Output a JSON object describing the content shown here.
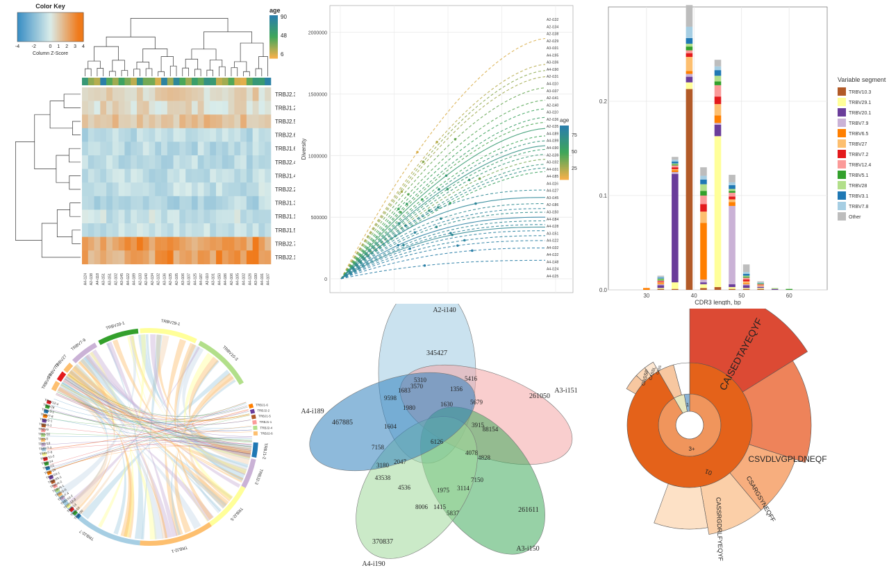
{
  "chart_data": [
    {
      "type": "heatmap",
      "color_key": {
        "title": "Color Key",
        "xlabel": "Column Z-Score",
        "ticks": [
          "-4",
          "-2",
          "0",
          "1",
          "2",
          "3",
          "4"
        ]
      },
      "age_legend": {
        "title": "age",
        "ticks": [
          "90",
          "48",
          "6"
        ]
      },
      "rows": [
        "TRBJ2.3",
        "TRBJ1.2",
        "TRBJ2.5",
        "TRBJ2.6",
        "TRBJ1.6",
        "TRBJ2.4",
        "TRBJ1.4",
        "TRBJ2.2",
        "TRBJ1.3",
        "TRBJ1.1",
        "TRBJ1.5",
        "TRBJ2.7",
        "TRBJ2.1"
      ],
      "columns": [
        "A4-i124",
        "A2-i138",
        "A4-i118",
        "A3-i151",
        "A3-i151",
        "A2-i102",
        "A3-i145",
        "A4-i122",
        "A4-i189",
        "A2-i133",
        "A2-i140",
        "A2-i134",
        "A2-i132",
        "A3-i136",
        "A2-i135",
        "A2-i105",
        "A3-i106",
        "A3-i107",
        "A4-i125",
        "A4-i187",
        "A2-i110",
        "A3-i101",
        "A4-i150",
        "A4-i186",
        "A2-i106",
        "A4-i105",
        "A4-i102",
        "A4-i126",
        "A3-i190",
        "A4-i191",
        "A4-i107"
      ]
    },
    {
      "type": "line",
      "ylabel": "Diversity",
      "yticks": [
        "0",
        "500000",
        "1000000",
        "1500000",
        "2000000"
      ],
      "ylim": [
        0,
        2150000
      ],
      "age_legend": {
        "title": "age",
        "ticks": [
          "75",
          "50",
          "25"
        ]
      },
      "samples": [
        "A2-i132",
        "A2-i134",
        "A2-i138",
        "A2-i129",
        "A3-i101",
        "A4-i195",
        "A3-i106",
        "A4-i190",
        "A2-i131",
        "A4-i110",
        "A3-i107",
        "A2-i141",
        "A2-i140",
        "A3-i110",
        "A2-i136",
        "A2-i135",
        "A4-i189",
        "A4-i199",
        "A4-i190",
        "A2-i139",
        "A3-i102",
        "A4-i101",
        "A4-i185",
        "A4-i116",
        "A4-i127",
        "A3-i145",
        "A2-i186",
        "A3-i150",
        "A4-i184",
        "A4-i128",
        "A3-i151",
        "A4-i122",
        "A4-i102",
        "A4-i132",
        "A4-i148",
        "A4-i124",
        "A4-i125"
      ],
      "curves": [
        {
          "end": 1950000,
          "age": 12,
          "style": "dashed"
        },
        {
          "end": 1740000,
          "age": 20,
          "style": "dashed"
        },
        {
          "end": 1690000,
          "age": 30,
          "style": "dashed"
        },
        {
          "end": 1640000,
          "age": 25,
          "style": "dashed"
        },
        {
          "end": 1550000,
          "age": 38,
          "style": "dashed"
        },
        {
          "end": 1450000,
          "age": 42,
          "style": "dashed"
        },
        {
          "end": 1380000,
          "age": 50,
          "style": "dashed"
        },
        {
          "end": 1310000,
          "age": 55,
          "style": "dashed"
        },
        {
          "end": 1270000,
          "age": 44,
          "style": "dashed"
        },
        {
          "end": 1220000,
          "age": 60,
          "style": "solid"
        },
        {
          "end": 1160000,
          "age": 48,
          "style": "dashed"
        },
        {
          "end": 1120000,
          "age": 65,
          "style": "dashed"
        },
        {
          "end": 1080000,
          "age": 70,
          "style": "solid"
        },
        {
          "end": 1050000,
          "age": 58,
          "style": "dashed"
        },
        {
          "end": 1010000,
          "age": 62,
          "style": "dashed"
        },
        {
          "end": 970000,
          "age": 35,
          "style": "dashed"
        },
        {
          "end": 930000,
          "age": 66,
          "style": "dashed"
        },
        {
          "end": 900000,
          "age": 72,
          "style": "dashed"
        },
        {
          "end": 870000,
          "age": 52,
          "style": "dashed"
        },
        {
          "end": 720000,
          "age": 78,
          "style": "dashed"
        },
        {
          "end": 660000,
          "age": 80,
          "style": "solid"
        },
        {
          "end": 610000,
          "age": 76,
          "style": "dashed"
        },
        {
          "end": 570000,
          "age": 82,
          "style": "dashed"
        },
        {
          "end": 540000,
          "age": 74,
          "style": "dashed"
        },
        {
          "end": 500000,
          "age": 85,
          "style": "solid"
        },
        {
          "end": 470000,
          "age": 79,
          "style": "dashed"
        },
        {
          "end": 440000,
          "age": 81,
          "style": "dashed"
        },
        {
          "end": 420000,
          "age": 77,
          "style": "solid"
        },
        {
          "end": 390000,
          "age": 84,
          "style": "dashed"
        },
        {
          "end": 350000,
          "age": 83,
          "style": "dashed"
        },
        {
          "end": 310000,
          "age": 86,
          "style": "dashed"
        },
        {
          "end": 250000,
          "age": 88,
          "style": "dashed"
        },
        {
          "end": 150000,
          "age": 87,
          "style": "dashed"
        }
      ]
    },
    {
      "type": "bar",
      "xlabel": "CDR3 length, bp",
      "xticks": [
        "30",
        "40",
        "50",
        "60"
      ],
      "yticks": [
        "0.0",
        "0.1",
        "0.2"
      ],
      "ylim": [
        0,
        0.3
      ],
      "xlim": [
        22,
        68
      ],
      "legend_title": "Variable segment",
      "segments": [
        {
          "name": "TRBV10.3",
          "color": "#b25a28"
        },
        {
          "name": "TRBV29.1",
          "color": "#ffff99"
        },
        {
          "name": "TRBV20.1",
          "color": "#6a3d9a"
        },
        {
          "name": "TRBV7.9",
          "color": "#cab2d6"
        },
        {
          "name": "TRBV6.5",
          "color": "#ff7f00"
        },
        {
          "name": "TRBV27",
          "color": "#fdbf6f"
        },
        {
          "name": "TRBV7.2",
          "color": "#e31a1c"
        },
        {
          "name": "TRBV12.4",
          "color": "#fb9a99"
        },
        {
          "name": "TRBV5.1",
          "color": "#33a02c"
        },
        {
          "name": "TRBV28",
          "color": "#b2df8a"
        },
        {
          "name": "TRBV3.1",
          "color": "#1f78b4"
        },
        {
          "name": "TRBV7.8",
          "color": "#a6cee3"
        },
        {
          "name": "Other",
          "color": "#bdbdbd"
        }
      ],
      "bars": [
        {
          "x": 30,
          "values": [
            0,
            0,
            0,
            0,
            0.002,
            0,
            0,
            0,
            0,
            0,
            0,
            0,
            0
          ]
        },
        {
          "x": 33,
          "values": [
            0.001,
            0.001,
            0.003,
            0.001,
            0.001,
            0.001,
            0.001,
            0.001,
            0.001,
            0.001,
            0.001,
            0.001,
            0.001
          ]
        },
        {
          "x": 36,
          "values": [
            0.001,
            0.007,
            0.115,
            0.002,
            0.002,
            0.001,
            0.002,
            0.002,
            0.001,
            0.001,
            0.002,
            0.002,
            0.003
          ]
        },
        {
          "x": 39,
          "values": [
            0.213,
            0.007,
            0.006,
            0.003,
            0.003,
            0.015,
            0.004,
            0.003,
            0.004,
            0.003,
            0.006,
            0.012,
            0.023
          ]
        },
        {
          "x": 42,
          "values": [
            0.002,
            0.004,
            0.002,
            0.003,
            0.06,
            0.012,
            0.008,
            0.009,
            0.005,
            0.007,
            0.005,
            0.004,
            0.009
          ]
        },
        {
          "x": 45,
          "values": [
            0.003,
            0.16,
            0.012,
            0.002,
            0.008,
            0.012,
            0.008,
            0.012,
            0.004,
            0.006,
            0.006,
            0.004,
            0.007
          ]
        },
        {
          "x": 48,
          "values": [
            0.001,
            0.002,
            0.003,
            0.083,
            0.004,
            0.003,
            0.003,
            0.004,
            0.002,
            0.002,
            0.004,
            0.003,
            0.008
          ]
        },
        {
          "x": 51,
          "values": [
            0.001,
            0.001,
            0.003,
            0.001,
            0.001,
            0.002,
            0.002,
            0.002,
            0.001,
            0.001,
            0.002,
            0.002,
            0.008
          ]
        },
        {
          "x": 54,
          "values": [
            0.001,
            0.001,
            0.001,
            0.001,
            0.0005,
            0.0005,
            0.0005,
            0.0005,
            0.0005,
            0.0005,
            0.0005,
            0.0005,
            0.001
          ]
        },
        {
          "x": 57,
          "values": [
            0,
            0,
            0.001,
            0,
            0,
            0,
            0,
            0,
            0,
            0.001,
            0,
            0,
            0
          ]
        },
        {
          "x": 60,
          "values": [
            0,
            0,
            0,
            0,
            0,
            0,
            0,
            0,
            0.001,
            0,
            0,
            0,
            0
          ]
        }
      ]
    },
    {
      "type": "chord",
      "major_arcs": [
        {
          "name": "TRBJ2-7",
          "color": "#a6cee3"
        },
        {
          "name": "TRBJ2-1",
          "color": "#fdbf6f"
        },
        {
          "name": "TRBJ2-5",
          "color": "#ffff99"
        },
        {
          "name": "TRBJ2-3",
          "color": "#cab2d6"
        },
        {
          "name": "TRBJ1-2",
          "color": "#1f78b4"
        },
        {
          "name": "TRBV10-3",
          "color": "#b2df8a"
        },
        {
          "name": "TRBV29-1",
          "color": "#ffff99"
        },
        {
          "name": "TRBV20-1",
          "color": "#33a02c"
        },
        {
          "name": "TRBV7-9",
          "color": "#cab2d6"
        },
        {
          "name": "TRBV27",
          "color": "#fdbf6f"
        },
        {
          "name": "TRBV7-2",
          "color": "#e31a1c"
        },
        {
          "name": "TRBV6-5",
          "color": "#fdbf6f"
        }
      ],
      "small_labels_right": [
        "TRBJ1-6",
        "TRBJ2-2",
        "TRBJ1-5",
        "TRBJ1-1",
        "TRBJ2-4",
        "TRBJ2-6"
      ],
      "small_labels_left": [
        "TRBV12-4",
        "TRBV28",
        "TRBV3-1",
        "TRBV7-8",
        "TRBV5-1",
        "TRBV4-1",
        "TRBV9",
        "TRBV30",
        "TRBV2",
        "TRBV18",
        "TRBV7-3",
        "TRBV7-6",
        "TRBV11-2",
        "TRBV14",
        "TRBV15",
        "TRBV19",
        "TRBV24-1",
        "TRBV25-1",
        "TRBV4-2",
        "TRBV6-1",
        "TRBV6-6",
        "TRBV7-4",
        "TRBV10-2",
        "TRBV12-3",
        "TRBV13",
        "TRBV16",
        "TRBV20"
      ]
    },
    {
      "type": "venn",
      "sets": [
        "A2-i140",
        "A3-i151",
        "A3-i150",
        "A4-i190",
        "A4-i189"
      ],
      "set_colors": [
        "#9ecae1",
        "#f4a6a6",
        "#41ab5d",
        "#a1d99b",
        "#3182bd"
      ],
      "values": [
        "345427",
        "261050",
        "261611",
        "370837",
        "467885",
        "5310",
        "5416",
        "1683",
        "3570",
        "1356",
        "9598",
        "1980",
        "1630",
        "5679",
        "3915",
        "1604",
        "6126",
        "88154",
        "7158",
        "4078",
        "4828",
        "3180",
        "2047",
        "43538",
        "7150",
        "4536",
        "1975",
        "3114",
        "8006",
        "1415",
        "5837"
      ]
    },
    {
      "type": "sunburst",
      "inner_labels": [
        "3+",
        "1"
      ],
      "middle_label": "01",
      "outer_labels": [
        "CAISEDTAYEQYF",
        "CSVDLVGPLDNEQF",
        "CSARGSYNEQFF",
        "CASSRGDRLFYEQYF",
        "CASSP",
        "CASSL",
        "CASS"
      ]
    }
  ]
}
